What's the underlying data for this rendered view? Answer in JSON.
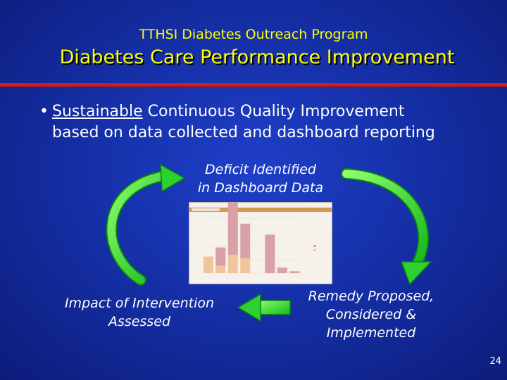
{
  "slide": {
    "subtitle": "TTHSI Diabetes Outreach Program",
    "title": "Diabetes Care Performance Improvement",
    "bullet_marker": "•",
    "bullet_underlined": "Sustainable",
    "bullet_rest_line1": " Continuous Quality Improvement",
    "bullet_line2": "based on data collected and dashboard reporting",
    "cycle": {
      "top_line1": "Deficit Identified",
      "top_line2": "in Dashboard Data",
      "right_line1": "Remedy Proposed,",
      "right_line2": "Considered &",
      "right_line3": "Implemented",
      "left_line1": "Impact of Intervention",
      "left_line2": "Assessed"
    },
    "page_number": "24",
    "colors": {
      "title": "#ffff00",
      "rule": "#c81e2b",
      "arrow": "#33dd33",
      "bar_pink": "#d9a1a6",
      "bar_peach": "#f2c49b"
    }
  },
  "chart_data": {
    "type": "bar",
    "series": [
      {
        "values": [
          0,
          20,
          58,
          38,
          0,
          42,
          6,
          2
        ]
      },
      {
        "values": [
          18,
          8,
          20,
          16,
          0,
          0,
          0,
          0
        ]
      }
    ]
  }
}
